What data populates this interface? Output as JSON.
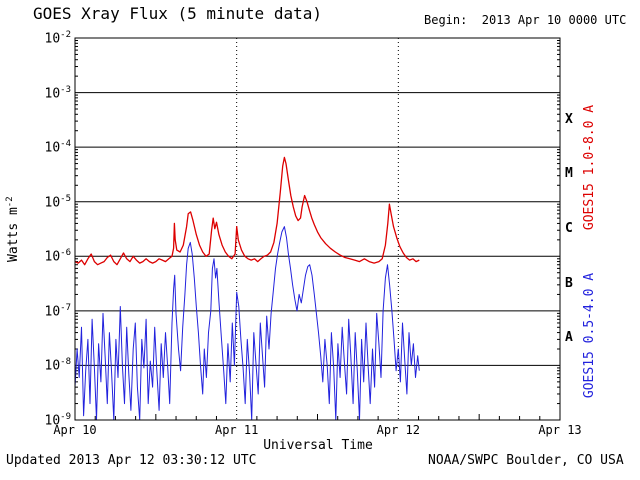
{
  "header": {
    "title": "GOES Xray Flux (5 minute data)",
    "begin_label": "Begin:  2013 Apr 10 0000 UTC"
  },
  "footer": {
    "updated": "Updated 2013 Apr 12 03:30:12 UTC",
    "source": "NOAA/SWPC Boulder, CO USA"
  },
  "chart_data": {
    "type": "line",
    "title": "GOES Xray Flux (5 minute data)",
    "xlabel": "Universal Time",
    "ylabel_base": "Watts m",
    "ylabel_exp": "-2",
    "y_axis": {
      "scale": "log",
      "min_exp": -9,
      "max_exp": -2,
      "exponents": [
        -2,
        -3,
        -4,
        -5,
        -6,
        -7,
        -8,
        -9
      ]
    },
    "x_axis": {
      "min_day": 0,
      "max_day": 3,
      "ticks": [
        {
          "label": "Apr 10",
          "day": 0
        },
        {
          "label": "Apr 11",
          "day": 1
        },
        {
          "label": "Apr 12",
          "day": 2
        },
        {
          "label": "Apr 13",
          "day": 3
        }
      ]
    },
    "flare_classes": [
      {
        "label": "X",
        "center_exponent": -3.5
      },
      {
        "label": "M",
        "center_exponent": -4.5
      },
      {
        "label": "C",
        "center_exponent": -5.5
      },
      {
        "label": "B",
        "center_exponent": -6.5
      },
      {
        "label": "A",
        "center_exponent": -7.5
      }
    ],
    "grid": {
      "horizontal": "solid",
      "vertical_day_lines": "dotted",
      "line_color": "#000000"
    },
    "series": [
      {
        "name": "GOES15 1.0-8.0 A",
        "color": "#dd0000",
        "points": [
          [
            0.0,
            8e-07
          ],
          [
            0.02,
            7.5e-07
          ],
          [
            0.04,
            8.5e-07
          ],
          [
            0.06,
            7e-07
          ],
          [
            0.08,
            9e-07
          ],
          [
            0.1,
            1.1e-06
          ],
          [
            0.12,
            8e-07
          ],
          [
            0.14,
            7e-07
          ],
          [
            0.16,
            7.5e-07
          ],
          [
            0.18,
            8e-07
          ],
          [
            0.2,
            9.5e-07
          ],
          [
            0.22,
            1.05e-06
          ],
          [
            0.24,
            8e-07
          ],
          [
            0.26,
            7e-07
          ],
          [
            0.28,
            9e-07
          ],
          [
            0.3,
            1.15e-06
          ],
          [
            0.32,
            9e-07
          ],
          [
            0.34,
            8e-07
          ],
          [
            0.36,
            1e-06
          ],
          [
            0.38,
            8.5e-07
          ],
          [
            0.4,
            7.5e-07
          ],
          [
            0.42,
            8e-07
          ],
          [
            0.44,
            9e-07
          ],
          [
            0.46,
            8e-07
          ],
          [
            0.48,
            7.5e-07
          ],
          [
            0.5,
            8e-07
          ],
          [
            0.52,
            9e-07
          ],
          [
            0.54,
            8.5e-07
          ],
          [
            0.56,
            8e-07
          ],
          [
            0.58,
            9e-07
          ],
          [
            0.6,
            1e-06
          ],
          [
            0.61,
            1.4e-06
          ],
          [
            0.615,
            4e-06
          ],
          [
            0.62,
            2e-06
          ],
          [
            0.63,
            1.3e-06
          ],
          [
            0.65,
            1.2e-06
          ],
          [
            0.67,
            1.6e-06
          ],
          [
            0.69,
            3.5e-06
          ],
          [
            0.7,
            6e-06
          ],
          [
            0.715,
            6.5e-06
          ],
          [
            0.73,
            4.5e-06
          ],
          [
            0.75,
            2.5e-06
          ],
          [
            0.77,
            1.6e-06
          ],
          [
            0.79,
            1.2e-06
          ],
          [
            0.81,
            1e-06
          ],
          [
            0.83,
            1.1e-06
          ],
          [
            0.845,
            3e-06
          ],
          [
            0.855,
            5e-06
          ],
          [
            0.865,
            3.2e-06
          ],
          [
            0.875,
            4.2e-06
          ],
          [
            0.89,
            2.5e-06
          ],
          [
            0.91,
            1.6e-06
          ],
          [
            0.93,
            1.2e-06
          ],
          [
            0.95,
            1e-06
          ],
          [
            0.97,
            9e-07
          ],
          [
            0.99,
            1.1e-06
          ],
          [
            1.0,
            3.5e-06
          ],
          [
            1.01,
            2e-06
          ],
          [
            1.03,
            1.3e-06
          ],
          [
            1.05,
            1e-06
          ],
          [
            1.07,
            9e-07
          ],
          [
            1.09,
            8.5e-07
          ],
          [
            1.11,
            9e-07
          ],
          [
            1.13,
            8e-07
          ],
          [
            1.15,
            9e-07
          ],
          [
            1.17,
            1e-06
          ],
          [
            1.19,
            1.05e-06
          ],
          [
            1.21,
            1.2e-06
          ],
          [
            1.23,
            1.8e-06
          ],
          [
            1.25,
            4e-06
          ],
          [
            1.27,
            1.5e-05
          ],
          [
            1.285,
            4.5e-05
          ],
          [
            1.295,
            6.5e-05
          ],
          [
            1.305,
            5e-05
          ],
          [
            1.32,
            2.5e-05
          ],
          [
            1.335,
            1.3e-05
          ],
          [
            1.35,
            8e-06
          ],
          [
            1.365,
            5.5e-06
          ],
          [
            1.38,
            4.5e-06
          ],
          [
            1.395,
            5e-06
          ],
          [
            1.405,
            8e-06
          ],
          [
            1.42,
            1.3e-05
          ],
          [
            1.435,
            1e-05
          ],
          [
            1.45,
            7e-06
          ],
          [
            1.465,
            5e-06
          ],
          [
            1.48,
            3.8e-06
          ],
          [
            1.5,
            2.8e-06
          ],
          [
            1.52,
            2.2e-06
          ],
          [
            1.55,
            1.7e-06
          ],
          [
            1.58,
            1.4e-06
          ],
          [
            1.61,
            1.2e-06
          ],
          [
            1.64,
            1.05e-06
          ],
          [
            1.67,
            9.5e-07
          ],
          [
            1.7,
            9e-07
          ],
          [
            1.73,
            8.5e-07
          ],
          [
            1.76,
            8e-07
          ],
          [
            1.79,
            9e-07
          ],
          [
            1.82,
            8e-07
          ],
          [
            1.85,
            7.5e-07
          ],
          [
            1.88,
            8e-07
          ],
          [
            1.9,
            9e-07
          ],
          [
            1.92,
            1.6e-06
          ],
          [
            1.935,
            4e-06
          ],
          [
            1.945,
            9e-06
          ],
          [
            1.955,
            6e-06
          ],
          [
            1.97,
            3.5e-06
          ],
          [
            1.99,
            2.2e-06
          ],
          [
            2.01,
            1.5e-06
          ],
          [
            2.03,
            1.15e-06
          ],
          [
            2.05,
            9.5e-07
          ],
          [
            2.07,
            8.5e-07
          ],
          [
            2.09,
            9e-07
          ],
          [
            2.11,
            8e-07
          ],
          [
            2.13,
            8.5e-07
          ]
        ]
      },
      {
        "name": "GOES15 0.5-4.0 A",
        "color": "#2222dd",
        "points": [
          [
            0.0,
            4e-09
          ],
          [
            0.013,
            2e-08
          ],
          [
            0.026,
            6e-09
          ],
          [
            0.04,
            5e-08
          ],
          [
            0.053,
            1.2e-09
          ],
          [
            0.066,
            8e-09
          ],
          [
            0.08,
            3e-08
          ],
          [
            0.093,
            2e-09
          ],
          [
            0.106,
            7e-08
          ],
          [
            0.12,
            9e-09
          ],
          [
            0.133,
            1e-09
          ],
          [
            0.146,
            2.5e-08
          ],
          [
            0.16,
            5e-09
          ],
          [
            0.173,
            9e-08
          ],
          [
            0.186,
            1.5e-08
          ],
          [
            0.2,
            2e-09
          ],
          [
            0.213,
            4e-08
          ],
          [
            0.226,
            8e-09
          ],
          [
            0.24,
            1e-09
          ],
          [
            0.253,
            3e-08
          ],
          [
            0.266,
            6e-09
          ],
          [
            0.28,
            1.2e-07
          ],
          [
            0.293,
            1e-08
          ],
          [
            0.306,
            2e-09
          ],
          [
            0.32,
            5e-08
          ],
          [
            0.333,
            7e-09
          ],
          [
            0.346,
            1.5e-09
          ],
          [
            0.36,
            2e-08
          ],
          [
            0.373,
            6e-08
          ],
          [
            0.386,
            4e-09
          ],
          [
            0.4,
            1e-09
          ],
          [
            0.413,
            3e-08
          ],
          [
            0.426,
            9e-09
          ],
          [
            0.44,
            7e-08
          ],
          [
            0.453,
            2e-09
          ],
          [
            0.466,
            1.2e-08
          ],
          [
            0.48,
            4e-09
          ],
          [
            0.493,
            5e-08
          ],
          [
            0.506,
            8e-09
          ],
          [
            0.52,
            1.5e-09
          ],
          [
            0.533,
            2.5e-08
          ],
          [
            0.546,
            6e-09
          ],
          [
            0.56,
            4e-08
          ],
          [
            0.573,
            1e-08
          ],
          [
            0.586,
            2e-09
          ],
          [
            0.6,
            6e-08
          ],
          [
            0.61,
            2.5e-07
          ],
          [
            0.617,
            4.5e-07
          ],
          [
            0.625,
            9e-08
          ],
          [
            0.64,
            2e-08
          ],
          [
            0.653,
            8e-09
          ],
          [
            0.666,
            5e-08
          ],
          [
            0.68,
            2e-07
          ],
          [
            0.69,
            7e-07
          ],
          [
            0.7,
            1.4e-06
          ],
          [
            0.713,
            1.8e-06
          ],
          [
            0.725,
            1.1e-06
          ],
          [
            0.738,
            4e-07
          ],
          [
            0.75,
            1.2e-07
          ],
          [
            0.763,
            4e-08
          ],
          [
            0.776,
            1e-08
          ],
          [
            0.79,
            3e-09
          ],
          [
            0.8,
            2e-08
          ],
          [
            0.813,
            6e-09
          ],
          [
            0.826,
            4e-08
          ],
          [
            0.84,
            1e-07
          ],
          [
            0.85,
            6e-07
          ],
          [
            0.86,
            9e-07
          ],
          [
            0.87,
            4e-07
          ],
          [
            0.878,
            6e-07
          ],
          [
            0.89,
            1.5e-07
          ],
          [
            0.906,
            3e-08
          ],
          [
            0.92,
            8e-09
          ],
          [
            0.933,
            2e-09
          ],
          [
            0.946,
            2.5e-08
          ],
          [
            0.96,
            5e-09
          ],
          [
            0.973,
            6e-08
          ],
          [
            0.986,
            1e-08
          ],
          [
            1.0,
            2.2e-07
          ],
          [
            1.013,
            1.2e-07
          ],
          [
            1.026,
            3e-08
          ],
          [
            1.04,
            9e-09
          ],
          [
            1.053,
            2e-09
          ],
          [
            1.066,
            3e-08
          ],
          [
            1.08,
            7e-09
          ],
          [
            1.093,
            1e-09
          ],
          [
            1.106,
            4e-08
          ],
          [
            1.12,
            1e-08
          ],
          [
            1.133,
            3e-09
          ],
          [
            1.146,
            6e-08
          ],
          [
            1.16,
            1.5e-08
          ],
          [
            1.173,
            4e-09
          ],
          [
            1.186,
            8e-08
          ],
          [
            1.2,
            2e-08
          ],
          [
            1.213,
            9e-08
          ],
          [
            1.226,
            2.2e-07
          ],
          [
            1.24,
            6e-07
          ],
          [
            1.253,
            1.1e-06
          ],
          [
            1.266,
            1.8e-06
          ],
          [
            1.28,
            2.8e-06
          ],
          [
            1.295,
            3.5e-06
          ],
          [
            1.308,
            2.2e-06
          ],
          [
            1.32,
            1.1e-06
          ],
          [
            1.333,
            6e-07
          ],
          [
            1.346,
            3e-07
          ],
          [
            1.36,
            1.6e-07
          ],
          [
            1.373,
            1e-07
          ],
          [
            1.386,
            2e-07
          ],
          [
            1.4,
            1.4e-07
          ],
          [
            1.413,
            2.5e-07
          ],
          [
            1.426,
            4.5e-07
          ],
          [
            1.44,
            6.5e-07
          ],
          [
            1.452,
            7e-07
          ],
          [
            1.466,
            4.5e-07
          ],
          [
            1.48,
            2e-07
          ],
          [
            1.493,
            9e-08
          ],
          [
            1.506,
            4e-08
          ],
          [
            1.52,
            1.5e-08
          ],
          [
            1.533,
            5e-09
          ],
          [
            1.546,
            3e-08
          ],
          [
            1.56,
            1e-08
          ],
          [
            1.573,
            2e-09
          ],
          [
            1.586,
            4e-08
          ],
          [
            1.6,
            9e-09
          ],
          [
            1.613,
            1e-09
          ],
          [
            1.626,
            2.5e-08
          ],
          [
            1.64,
            6e-09
          ],
          [
            1.653,
            5e-08
          ],
          [
            1.666,
            1.2e-08
          ],
          [
            1.68,
            3e-09
          ],
          [
            1.693,
            7e-08
          ],
          [
            1.706,
            1.5e-08
          ],
          [
            1.72,
            2e-09
          ],
          [
            1.733,
            4e-08
          ],
          [
            1.746,
            8e-09
          ],
          [
            1.76,
            1e-09
          ],
          [
            1.773,
            3e-08
          ],
          [
            1.786,
            5e-09
          ],
          [
            1.8,
            6e-08
          ],
          [
            1.813,
            1e-08
          ],
          [
            1.826,
            2e-09
          ],
          [
            1.84,
            2e-08
          ],
          [
            1.853,
            4e-09
          ],
          [
            1.866,
            9e-08
          ],
          [
            1.88,
            2.5e-08
          ],
          [
            1.893,
            6e-09
          ],
          [
            1.906,
            1e-07
          ],
          [
            1.92,
            4e-07
          ],
          [
            1.933,
            7e-07
          ],
          [
            1.946,
            3e-07
          ],
          [
            1.96,
            1e-07
          ],
          [
            1.973,
            3e-08
          ],
          [
            1.986,
            8e-09
          ],
          [
            2.0,
            2e-08
          ],
          [
            2.013,
            5e-09
          ],
          [
            2.026,
            6e-08
          ],
          [
            2.04,
            1.2e-08
          ],
          [
            2.053,
            3e-09
          ],
          [
            2.066,
            4e-08
          ],
          [
            2.08,
            1e-08
          ],
          [
            2.093,
            2.5e-08
          ],
          [
            2.106,
            6e-09
          ],
          [
            2.12,
            1.5e-08
          ],
          [
            2.13,
            8e-09
          ]
        ]
      }
    ]
  }
}
